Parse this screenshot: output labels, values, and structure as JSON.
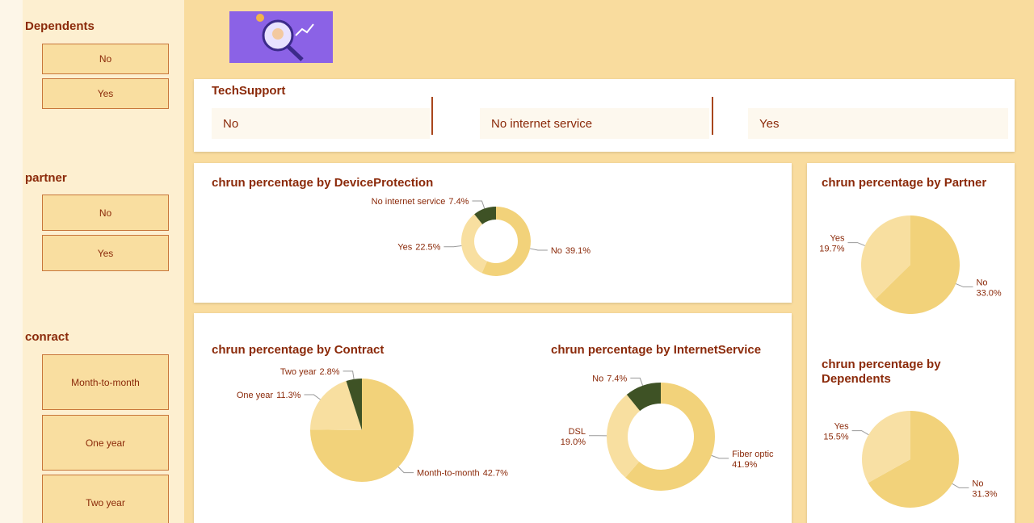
{
  "sidebar": [
    {
      "title": "Dependents",
      "options": [
        "No",
        "Yes"
      ]
    },
    {
      "title": "partner",
      "options": [
        "No",
        "Yes"
      ]
    },
    {
      "title": "conract",
      "options": [
        "Month-to-month",
        "One year",
        "Two year"
      ]
    }
  ],
  "tech_support": {
    "title": "TechSupport",
    "options": [
      "No",
      "No internet service",
      "Yes"
    ]
  },
  "chart_data": [
    {
      "type": "donut",
      "title": "chrun percentage by DeviceProtection",
      "categories": [
        "No",
        "Yes",
        "No internet service"
      ],
      "values": [
        39.1,
        22.5,
        7.4
      ],
      "value_labels": [
        "39.1%",
        "22.5%",
        "7.4%"
      ],
      "colors": [
        "#f2d27a",
        "#f8dfa0",
        "#3e5225"
      ]
    },
    {
      "type": "pie",
      "title": "chrun percentage by Contract",
      "categories": [
        "Month-to-month",
        "One year",
        "Two year"
      ],
      "values": [
        42.7,
        11.3,
        2.8
      ],
      "value_labels": [
        "42.7%",
        "11.3%",
        "2.8%"
      ],
      "colors": [
        "#f2d27a",
        "#f8dfa0",
        "#3e5225"
      ]
    },
    {
      "type": "donut",
      "title": "chrun percentage by InternetService",
      "categories": [
        "Fiber optic",
        "DSL",
        "No"
      ],
      "values": [
        41.9,
        19.0,
        7.4
      ],
      "value_labels": [
        "41.9%",
        "19.0%",
        "7.4%"
      ],
      "colors": [
        "#f2d27a",
        "#f8dfa0",
        "#3e5225"
      ]
    },
    {
      "type": "pie",
      "title": "chrun percentage by Partner",
      "categories": [
        "No",
        "Yes"
      ],
      "values": [
        33.0,
        19.7
      ],
      "value_labels": [
        "33.0%",
        "19.7%"
      ],
      "colors": [
        "#f2d27a",
        "#f8dfa0"
      ]
    },
    {
      "type": "pie",
      "title": "chrun percentage by Dependents",
      "categories": [
        "No",
        "Yes"
      ],
      "values": [
        31.3,
        15.5
      ],
      "value_labels": [
        "31.3%",
        "15.5%"
      ],
      "colors": [
        "#f2d27a",
        "#f8e0a4"
      ]
    }
  ]
}
